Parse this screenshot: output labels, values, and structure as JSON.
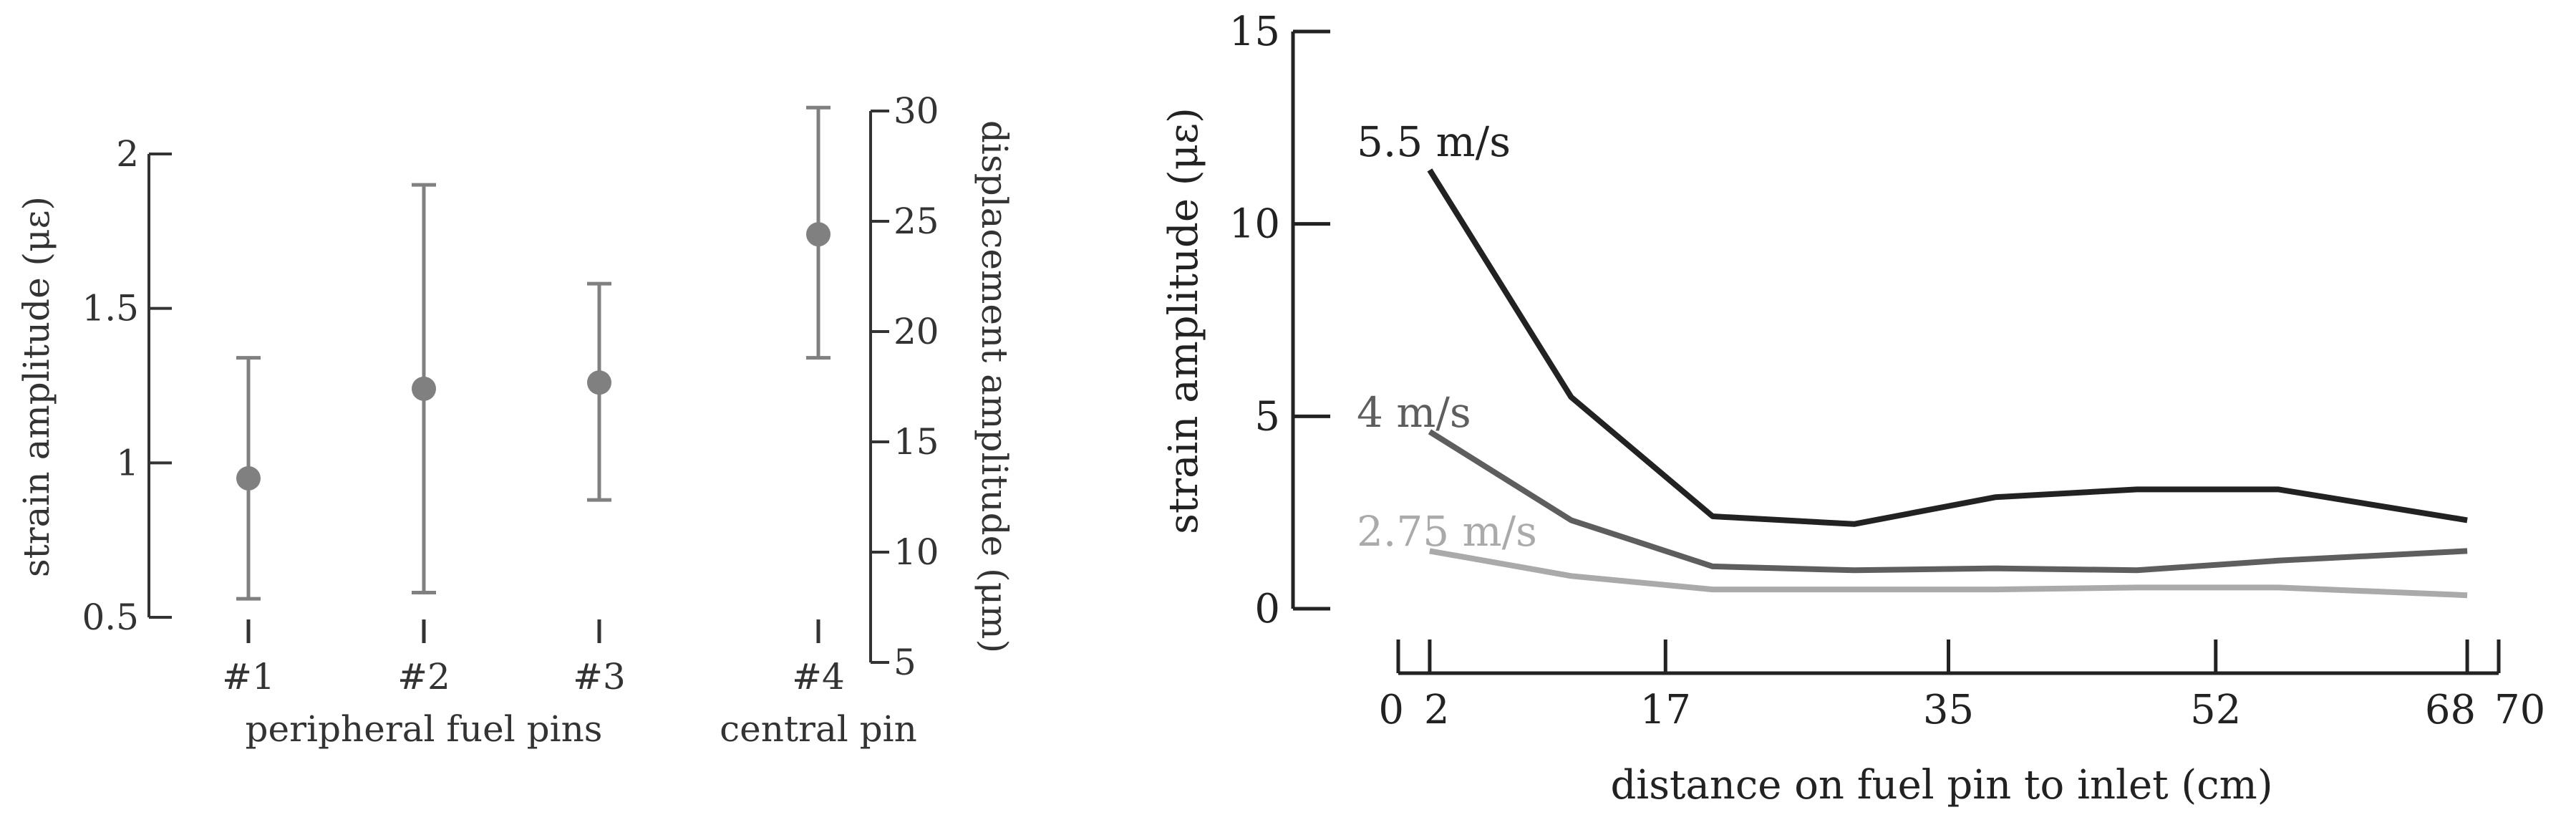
{
  "chart_data": [
    {
      "type": "scatter",
      "xlabel": "",
      "ylabel": "strain amplitude (με)",
      "ylabel_right": "displacement amplitude (μm)",
      "ylim": [
        0.5,
        2
      ],
      "yticks": [
        "0.5",
        "1",
        "1.5",
        "2"
      ],
      "ylim_right": [
        5,
        30
      ],
      "yticks_right": [
        "5",
        "10",
        "15",
        "20",
        "25",
        "30"
      ],
      "group_labels": [
        "peripheral fuel pins",
        "central pin"
      ],
      "categories": [
        "#1",
        "#2",
        "#3",
        "#4"
      ],
      "series": [
        {
          "values": [
            0.95,
            1.24,
            1.26,
            1.74
          ],
          "err_low": [
            0.56,
            0.58,
            0.88,
            1.34
          ],
          "err_high": [
            1.34,
            1.9,
            1.58,
            2.15
          ],
          "color": "#808080"
        }
      ]
    },
    {
      "type": "line",
      "xlabel": "distance on fuel pin to inlet (cm)",
      "ylabel": "strain amplitude (με)",
      "xlim": [
        0,
        70
      ],
      "ylim": [
        0,
        15
      ],
      "xticks": [
        "0",
        "2",
        "17",
        "35",
        "52",
        "68",
        "70"
      ],
      "yticks": [
        "0",
        "5",
        "10",
        "15"
      ],
      "series": [
        {
          "name": "5.5 m/s",
          "color": "#222222",
          "x": [
            2,
            11,
            20,
            29,
            38,
            47,
            56,
            68
          ],
          "y": [
            11.4,
            5.5,
            2.4,
            2.2,
            2.9,
            3.1,
            3.1,
            2.3
          ]
        },
        {
          "name": "4 m/s",
          "color": "#5e5e5e",
          "x": [
            2,
            11,
            20,
            29,
            38,
            47,
            56,
            68
          ],
          "y": [
            4.6,
            2.3,
            1.1,
            1.0,
            1.05,
            1.0,
            1.25,
            1.5
          ]
        },
        {
          "name": "2.75 m/s",
          "color": "#aaaaaa",
          "x": [
            2,
            11,
            20,
            29,
            38,
            47,
            56,
            68
          ],
          "y": [
            1.5,
            0.85,
            0.5,
            0.5,
            0.5,
            0.55,
            0.55,
            0.35
          ]
        }
      ]
    }
  ]
}
